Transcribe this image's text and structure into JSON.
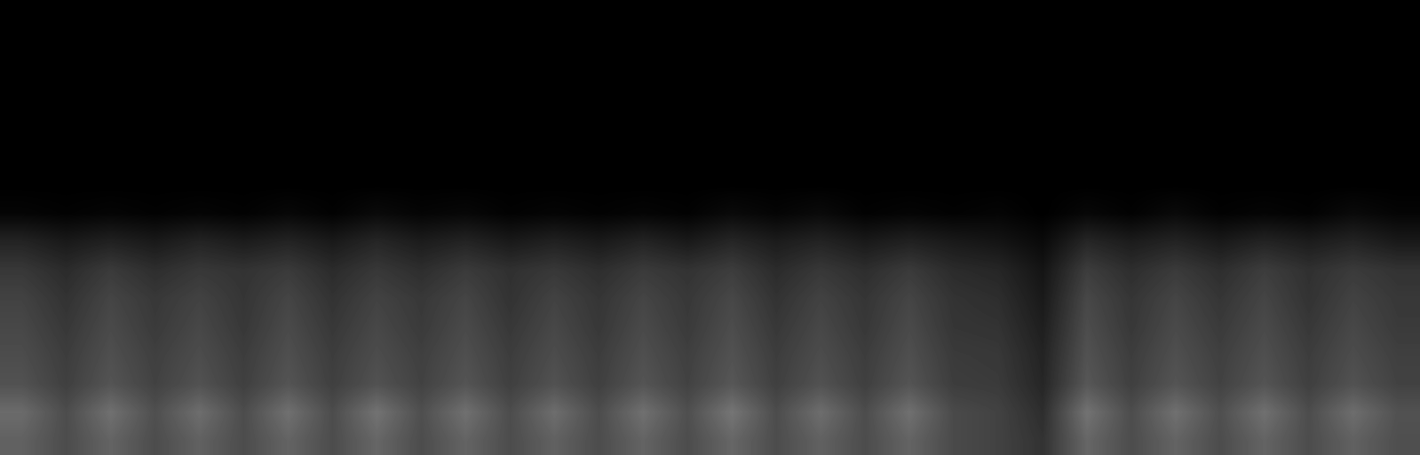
{
  "chart_data": {
    "type": "heatmap",
    "color": "gray",
    "tick_labels": false,
    "color_range": [
      0,
      1
    ],
    "cells": [
      [
        0,
        0,
        0,
        0,
        0,
        0,
        0,
        0,
        0,
        0,
        0,
        0,
        0,
        0,
        0,
        0,
        0,
        0,
        0,
        0,
        0,
        0,
        0,
        0,
        0,
        0,
        0,
        0,
        0,
        0,
        0,
        0
      ],
      [
        0,
        0,
        0,
        0,
        0,
        0,
        0,
        0,
        0,
        0,
        0,
        0,
        0,
        0,
        0,
        0,
        0,
        0,
        0,
        0,
        0,
        0,
        0,
        0,
        0,
        0,
        0,
        0,
        0,
        0,
        0,
        0
      ],
      [
        0,
        0,
        0,
        0,
        0,
        0,
        0,
        0,
        0,
        0,
        0,
        0,
        0,
        0,
        0,
        0,
        0,
        0,
        0,
        0,
        0,
        0,
        0,
        0,
        0,
        0,
        0,
        0,
        0,
        0,
        0,
        0
      ],
      [
        0,
        0,
        0,
        0,
        0,
        0,
        0,
        0,
        0,
        0,
        0,
        0,
        0,
        0,
        0,
        0,
        0,
        0,
        0,
        0,
        0,
        0,
        0,
        0,
        0,
        0,
        0,
        0,
        0,
        0,
        0,
        0
      ],
      [
        0,
        0,
        0,
        0,
        0,
        0,
        0,
        0,
        0,
        0,
        0,
        0,
        0,
        0,
        0,
        0,
        0,
        0,
        0,
        0,
        0,
        0,
        0,
        0,
        0,
        0,
        0,
        0,
        0,
        0,
        0,
        0
      ],
      [
        0,
        0,
        0,
        0,
        0,
        0,
        0,
        0,
        0,
        0,
        0,
        0,
        0,
        0,
        0,
        0,
        0,
        0,
        0,
        0,
        0,
        0,
        0,
        0,
        0,
        0,
        0,
        0,
        0,
        0,
        0,
        0
      ],
      [
        0,
        0,
        0,
        0,
        0,
        0,
        0,
        0,
        0,
        0,
        0,
        0,
        0,
        0,
        0,
        0,
        0,
        0,
        0,
        0,
        0,
        0,
        0,
        0,
        0,
        0,
        0,
        0,
        0,
        0,
        0,
        0
      ],
      [
        0.02,
        0.01,
        0.02,
        0.01,
        0.02,
        0.01,
        0.03,
        0.01,
        0.04,
        0.02,
        0.03,
        0.01,
        0.02,
        0.01,
        0.02,
        0.01,
        0.04,
        0.02,
        0.04,
        0.01,
        0.02,
        0.01,
        0.02,
        0.0,
        0.03,
        0.01,
        0.04,
        0.01,
        0.02,
        0.01,
        0.04,
        0.02
      ],
      [
        0.14,
        0.1,
        0.13,
        0.1,
        0.14,
        0.11,
        0.14,
        0.1,
        0.15,
        0.11,
        0.14,
        0.1,
        0.13,
        0.1,
        0.14,
        0.1,
        0.15,
        0.11,
        0.14,
        0.1,
        0.13,
        0.1,
        0.08,
        0.04,
        0.15,
        0.11,
        0.14,
        0.1,
        0.14,
        0.11,
        0.14,
        0.1
      ],
      [
        0.22,
        0.17,
        0.23,
        0.18,
        0.22,
        0.2,
        0.23,
        0.17,
        0.22,
        0.18,
        0.23,
        0.19,
        0.22,
        0.18,
        0.23,
        0.2,
        0.24,
        0.17,
        0.22,
        0.18,
        0.23,
        0.17,
        0.15,
        0.08,
        0.24,
        0.18,
        0.23,
        0.18,
        0.24,
        0.19,
        0.23,
        0.2
      ],
      [
        0.26,
        0.2,
        0.27,
        0.22,
        0.26,
        0.21,
        0.27,
        0.2,
        0.26,
        0.22,
        0.27,
        0.2,
        0.26,
        0.21,
        0.27,
        0.22,
        0.28,
        0.2,
        0.26,
        0.21,
        0.27,
        0.2,
        0.18,
        0.1,
        0.28,
        0.21,
        0.27,
        0.21,
        0.27,
        0.2,
        0.26,
        0.22
      ],
      [
        0.28,
        0.22,
        0.29,
        0.23,
        0.28,
        0.22,
        0.29,
        0.22,
        0.28,
        0.23,
        0.29,
        0.22,
        0.28,
        0.22,
        0.29,
        0.23,
        0.3,
        0.22,
        0.28,
        0.22,
        0.29,
        0.21,
        0.2,
        0.12,
        0.3,
        0.22,
        0.29,
        0.23,
        0.29,
        0.22,
        0.28,
        0.23
      ],
      [
        0.3,
        0.24,
        0.31,
        0.25,
        0.3,
        0.24,
        0.31,
        0.24,
        0.3,
        0.25,
        0.31,
        0.24,
        0.3,
        0.24,
        0.31,
        0.25,
        0.32,
        0.24,
        0.3,
        0.24,
        0.31,
        0.23,
        0.22,
        0.14,
        0.32,
        0.24,
        0.31,
        0.25,
        0.31,
        0.24,
        0.3,
        0.25
      ],
      [
        0.32,
        0.25,
        0.33,
        0.26,
        0.32,
        0.25,
        0.33,
        0.25,
        0.32,
        0.26,
        0.33,
        0.25,
        0.32,
        0.25,
        0.33,
        0.26,
        0.34,
        0.25,
        0.32,
        0.25,
        0.33,
        0.24,
        0.23,
        0.15,
        0.34,
        0.25,
        0.33,
        0.26,
        0.33,
        0.25,
        0.32,
        0.26
      ],
      [
        0.42,
        0.3,
        0.44,
        0.31,
        0.43,
        0.3,
        0.44,
        0.3,
        0.45,
        0.31,
        0.44,
        0.3,
        0.43,
        0.3,
        0.44,
        0.31,
        0.46,
        0.3,
        0.43,
        0.3,
        0.44,
        0.29,
        0.26,
        0.18,
        0.45,
        0.3,
        0.44,
        0.31,
        0.44,
        0.3,
        0.43,
        0.32
      ],
      [
        0.38,
        0.3,
        0.39,
        0.3,
        0.38,
        0.3,
        0.39,
        0.3,
        0.4,
        0.3,
        0.39,
        0.3,
        0.38,
        0.3,
        0.39,
        0.3,
        0.4,
        0.3,
        0.38,
        0.3,
        0.39,
        0.29,
        0.26,
        0.2,
        0.4,
        0.3,
        0.39,
        0.3,
        0.39,
        0.3,
        0.38,
        0.31
      ]
    ]
  }
}
